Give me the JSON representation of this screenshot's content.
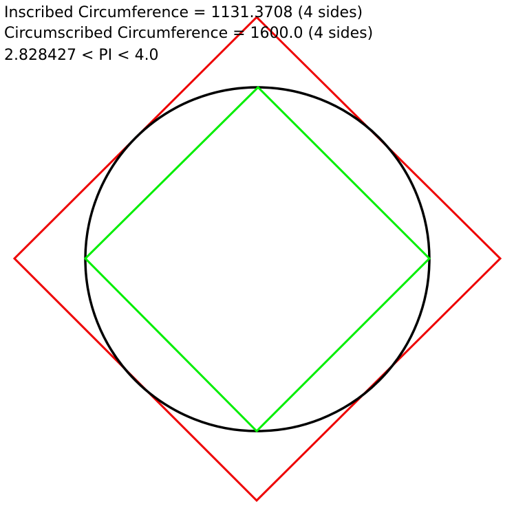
{
  "info": {
    "inscribed_line": "Inscribed Circumference = 1131.3708 (4 sides)",
    "circumscribed_line": "Circumscribed Circumference = 1600.0 (4 sides)",
    "pi_bounds_line": "2.828427 < PI < 4.0"
  },
  "colors": {
    "circle": "#000000",
    "inscribed_polygon": "#00ee00",
    "circumscribed_polygon": "#ee0000"
  }
}
